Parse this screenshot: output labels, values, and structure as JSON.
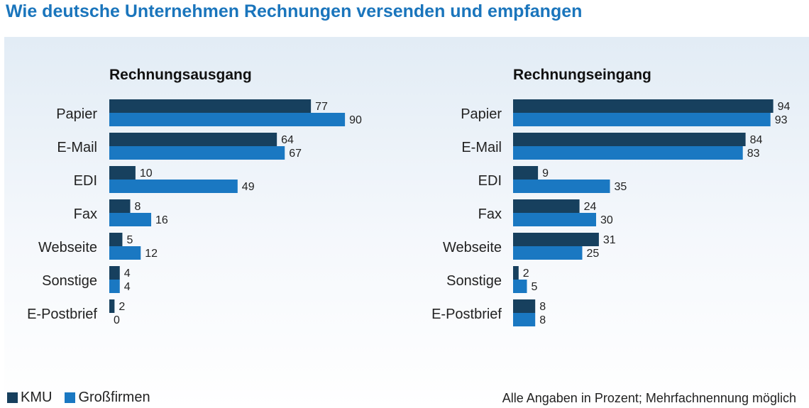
{
  "title": "Wie deutsche Unternehmen Rechnungen versenden und empfangen",
  "colors": {
    "kmu": "#17405e",
    "gross": "#1a78c2"
  },
  "legend": {
    "kmu": "KMU",
    "gross": "Großfirmen"
  },
  "footnote": "Alle Angaben in Prozent; Mehrfachnennung möglich",
  "chart_data": [
    {
      "type": "bar",
      "orientation": "horizontal",
      "title": "Rechnungsausgang",
      "categories": [
        "Papier",
        "E-Mail",
        "EDI",
        "Fax",
        "Webseite",
        "Sonstige",
        "E-Postbrief"
      ],
      "series": [
        {
          "name": "KMU",
          "values": [
            77,
            64,
            10,
            8,
            5,
            4,
            2
          ]
        },
        {
          "name": "Großfirmen",
          "values": [
            90,
            67,
            49,
            16,
            12,
            4,
            0
          ]
        }
      ],
      "xlim": [
        0,
        100
      ],
      "grid": false,
      "legend": "bottom-left"
    },
    {
      "type": "bar",
      "orientation": "horizontal",
      "title": "Rechnungseingang",
      "categories": [
        "Papier",
        "E-Mail",
        "EDI",
        "Fax",
        "Webseite",
        "Sonstige",
        "E-Postbrief"
      ],
      "series": [
        {
          "name": "KMU",
          "values": [
            94,
            84,
            9,
            24,
            31,
            2,
            8
          ]
        },
        {
          "name": "Großfirmen",
          "values": [
            93,
            83,
            35,
            30,
            25,
            5,
            8
          ]
        }
      ],
      "xlim": [
        0,
        100
      ],
      "grid": false,
      "legend": "bottom-left"
    }
  ]
}
